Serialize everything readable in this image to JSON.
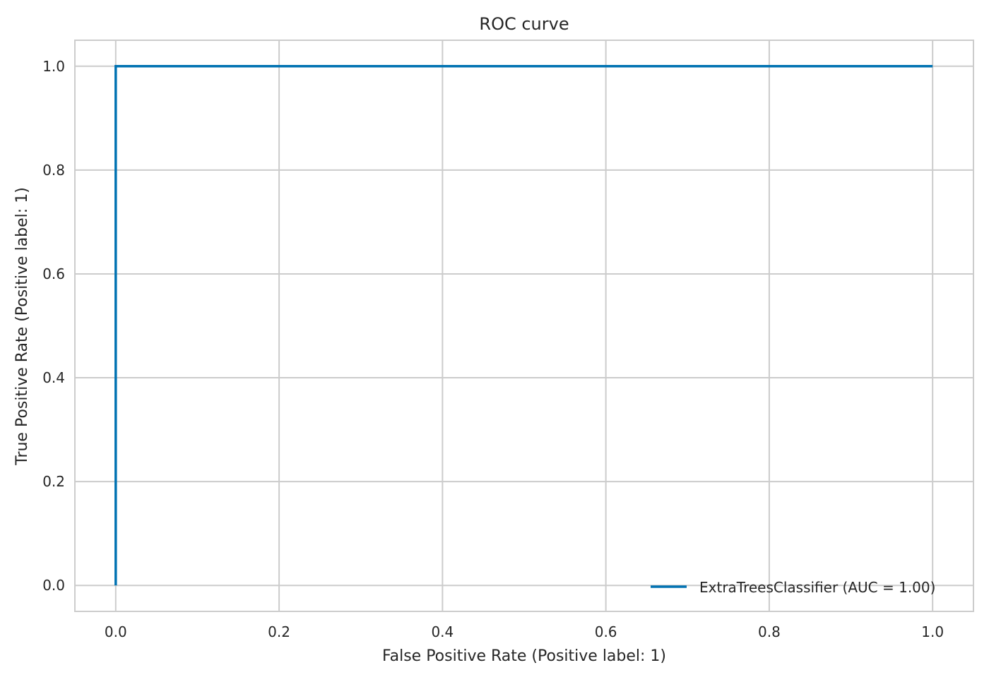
{
  "chart_data": {
    "type": "line",
    "title": "ROC curve",
    "xlabel": "False Positive Rate (Positive label: 1)",
    "ylabel": "True Positive Rate (Positive label: 1)",
    "xlim": [
      -0.05,
      1.05
    ],
    "ylim": [
      -0.05,
      1.05
    ],
    "xticks": [
      "0.0",
      "0.2",
      "0.4",
      "0.6",
      "0.8",
      "1.0"
    ],
    "yticks": [
      "0.0",
      "0.2",
      "0.4",
      "0.6",
      "0.8",
      "1.0"
    ],
    "grid": true,
    "legend_position": "lower-right",
    "series": [
      {
        "name": "ExtraTreesClassifier (AUC = 1.00)",
        "color": "#0072b2",
        "x": [
          0.0,
          0.0,
          1.0
        ],
        "y": [
          0.0,
          1.0,
          1.0
        ]
      }
    ]
  }
}
